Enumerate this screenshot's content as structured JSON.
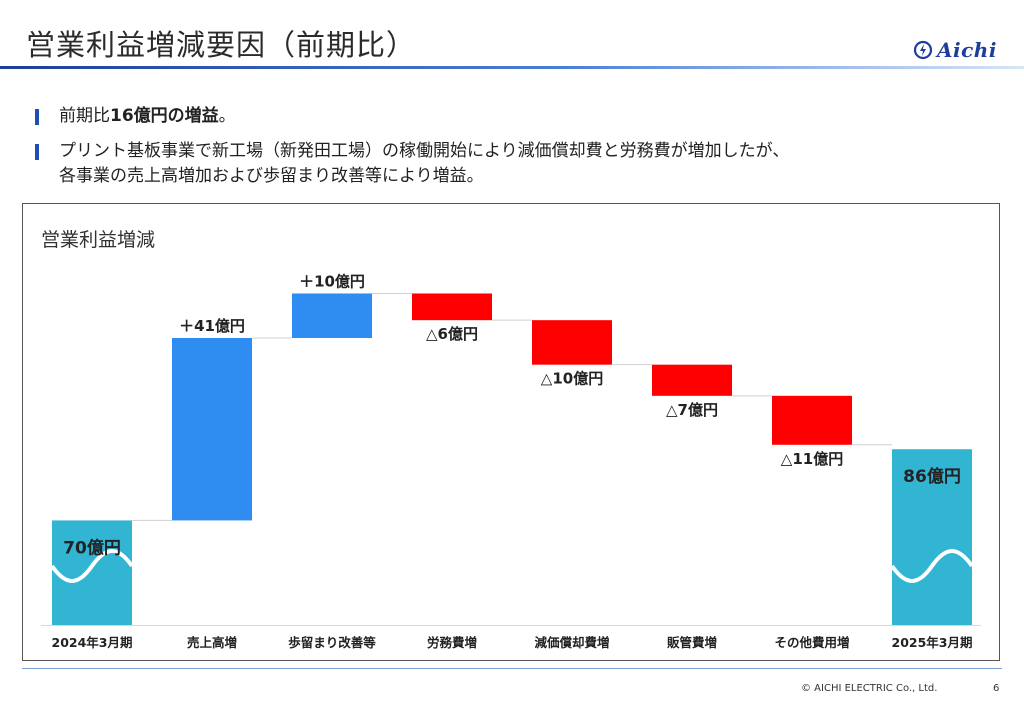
{
  "slide": {
    "title": "営業利益増減要因（前期比）",
    "logo_text": "Aichi",
    "bullets": [
      {
        "plain": "前期比",
        "bold": "16億円の増益",
        "tail": "。"
      },
      {
        "line1": "プリント基板事業で新工場（新発田工場）の稼働開始により減価償却費と労務費が増加したが、",
        "line2": "各事業の売上高増加および歩留まり改善等により増益。"
      }
    ],
    "footer": "© AICHI ELECTRIC Co., Ltd.",
    "page_number": "6"
  },
  "chart_data": {
    "type": "bar",
    "subtype": "waterfall",
    "title": "営業利益増減",
    "categories": [
      "2024年3月期",
      "売上高増",
      "歩留まり改善等",
      "労務費増",
      "減価償却費増",
      "販管費増",
      "その他費用増",
      "2025年3月期"
    ],
    "values": [
      70,
      41,
      10,
      -6,
      -10,
      -7,
      -11,
      86
    ],
    "kinds": [
      "total",
      "delta",
      "delta",
      "delta",
      "delta",
      "delta",
      "delta",
      "total"
    ],
    "labels": [
      "70億円",
      "＋41億円",
      "＋10億円",
      "△6億円",
      "△10億円",
      "△7億円",
      "△11億円",
      "86億円"
    ],
    "axis_break_on_totals": true,
    "colors": {
      "total": "#31b5d3",
      "increase": "#2f8cf0",
      "decrease": "#ff0000",
      "connector": "#d0d0d0"
    }
  }
}
